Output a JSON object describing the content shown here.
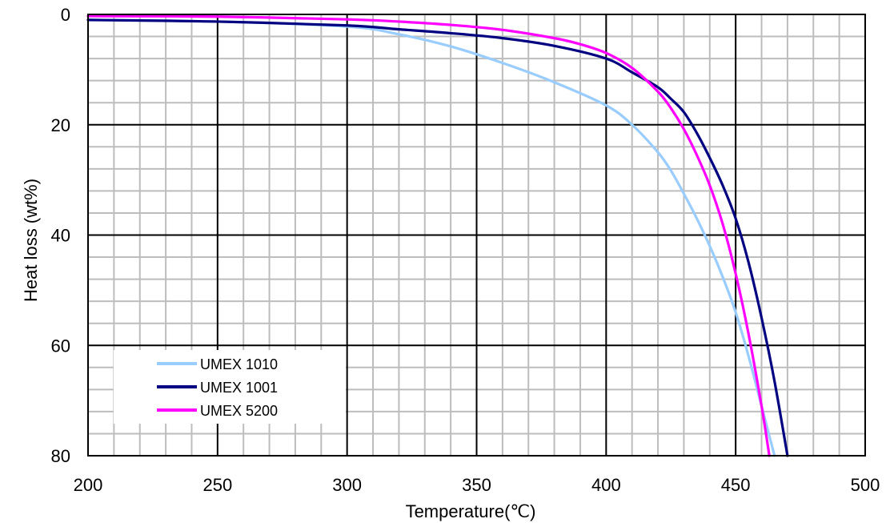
{
  "chart_data": {
    "type": "line",
    "xlabel": "Temperature(℃)",
    "ylabel": "Heat loss (wt%)",
    "xlim": [
      200,
      500
    ],
    "ylim": [
      0,
      80
    ],
    "y_inverted": true,
    "x_ticks": [
      200,
      250,
      300,
      350,
      400,
      450,
      500
    ],
    "y_ticks": [
      0,
      20,
      40,
      60,
      80
    ],
    "x_tick_labels": [
      "200",
      "250",
      "300",
      "350",
      "400",
      "450",
      "500"
    ],
    "y_tick_labels": [
      "0",
      "20",
      "40",
      "60",
      "80"
    ],
    "x_minor_step": 10,
    "y_minor_step": 4,
    "grid": true,
    "legend_position": "bottom-left",
    "series": [
      {
        "name": "UMEX 1010",
        "color": "#99ccff",
        "x": [
          200,
          250,
          300,
          320,
          340,
          360,
          380,
          400,
          410,
          420,
          425,
          430,
          435,
          440,
          445,
          450,
          455,
          460,
          465
        ],
        "y": [
          1,
          1.3,
          2.2,
          3.6,
          5.8,
          8.8,
          12.3,
          16.5,
          20,
          25,
          28.3,
          32.5,
          37,
          42,
          47.6,
          54,
          62,
          71,
          80
        ]
      },
      {
        "name": "UMEX 1001",
        "color": "#000080",
        "x": [
          200,
          250,
          300,
          320,
          340,
          360,
          380,
          400,
          410,
          420,
          425,
          430,
          435,
          440,
          445,
          450,
          455,
          460,
          465,
          470
        ],
        "y": [
          1,
          1.3,
          2,
          2.7,
          3.4,
          4.3,
          5.7,
          8,
          10.5,
          13.2,
          15.3,
          17.7,
          21.5,
          26,
          31,
          37,
          45,
          55,
          66.5,
          80
        ]
      },
      {
        "name": "UMEX 5200",
        "color": "#ff00ff",
        "x": [
          200,
          250,
          300,
          320,
          340,
          360,
          380,
          390,
          400,
          410,
          420,
          425,
          430,
          435,
          440,
          445,
          450,
          455,
          460,
          463
        ],
        "y": [
          0.3,
          0.4,
          0.9,
          1.3,
          1.9,
          2.8,
          4.3,
          5.4,
          7,
          9.7,
          14,
          17,
          20.8,
          25.5,
          31,
          38,
          47,
          58,
          71,
          80
        ]
      }
    ]
  }
}
